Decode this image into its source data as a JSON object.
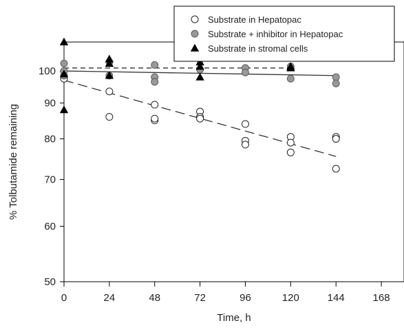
{
  "chart_data": {
    "type": "scatter",
    "title": "",
    "xlabel": "Time, h",
    "ylabel": "% Tolbutamide remaining",
    "x_ticks": [
      0,
      24,
      48,
      72,
      96,
      120,
      144,
      168
    ],
    "y_ticks": [
      50,
      60,
      70,
      80,
      90,
      100
    ],
    "xlim": [
      0,
      180
    ],
    "ylim": [
      50,
      110
    ],
    "y_scale": "log",
    "legend_position": "top-right",
    "series": [
      {
        "name": "Substrate in Hepatopac",
        "marker": "circle-open",
        "color": "#000000",
        "points": [
          {
            "x": 0,
            "y": 97.5
          },
          {
            "x": 24,
            "y": 93.5
          },
          {
            "x": 24,
            "y": 86
          },
          {
            "x": 48,
            "y": 89.5
          },
          {
            "x": 48,
            "y": 85
          },
          {
            "x": 48,
            "y": 85.5
          },
          {
            "x": 72,
            "y": 87.5
          },
          {
            "x": 72,
            "y": 86
          },
          {
            "x": 72,
            "y": 85.5
          },
          {
            "x": 96,
            "y": 84
          },
          {
            "x": 96,
            "y": 79.5
          },
          {
            "x": 96,
            "y": 78.5
          },
          {
            "x": 120,
            "y": 80.5
          },
          {
            "x": 120,
            "y": 79
          },
          {
            "x": 120,
            "y": 76.5
          },
          {
            "x": 144,
            "y": 80.5
          },
          {
            "x": 144,
            "y": 80
          },
          {
            "x": 144,
            "y": 72.5
          }
        ],
        "fit": {
          "x0": 0,
          "y0": 97,
          "x1": 144,
          "y1": 75.5,
          "style": "long-dash"
        }
      },
      {
        "name": "Substrate + inhibitor in Hepatopac",
        "marker": "circle-filled",
        "color": "#999999",
        "points": [
          {
            "x": 0,
            "y": 102.5
          },
          {
            "x": 0,
            "y": 100
          },
          {
            "x": 0,
            "y": 98.5
          },
          {
            "x": 24,
            "y": 103
          },
          {
            "x": 24,
            "y": 98.5
          },
          {
            "x": 48,
            "y": 102
          },
          {
            "x": 48,
            "y": 98
          },
          {
            "x": 48,
            "y": 96.5
          },
          {
            "x": 72,
            "y": 104
          },
          {
            "x": 72,
            "y": 100.5
          },
          {
            "x": 96,
            "y": 101
          },
          {
            "x": 96,
            "y": 99.5
          },
          {
            "x": 120,
            "y": 101.5
          },
          {
            "x": 120,
            "y": 97.5
          },
          {
            "x": 144,
            "y": 98
          },
          {
            "x": 144,
            "y": 96
          }
        ],
        "fit": {
          "x0": 0,
          "y0": 100,
          "x1": 144,
          "y1": 98.5,
          "style": "solid"
        }
      },
      {
        "name": "Substrate in stromal cells",
        "marker": "triangle",
        "color": "#000000",
        "points": [
          {
            "x": 0,
            "y": 110
          },
          {
            "x": 0,
            "y": 99
          },
          {
            "x": 0,
            "y": 88
          },
          {
            "x": 24,
            "y": 104
          },
          {
            "x": 24,
            "y": 102.5
          },
          {
            "x": 24,
            "y": 98.5
          },
          {
            "x": 72,
            "y": 103
          },
          {
            "x": 72,
            "y": 101.5
          },
          {
            "x": 72,
            "y": 98
          },
          {
            "x": 120,
            "y": 101.5
          },
          {
            "x": 120,
            "y": 101
          }
        ],
        "fit": {
          "x0": 0,
          "y0": 101,
          "x1": 120,
          "y1": 101,
          "style": "short-dash"
        }
      }
    ]
  }
}
